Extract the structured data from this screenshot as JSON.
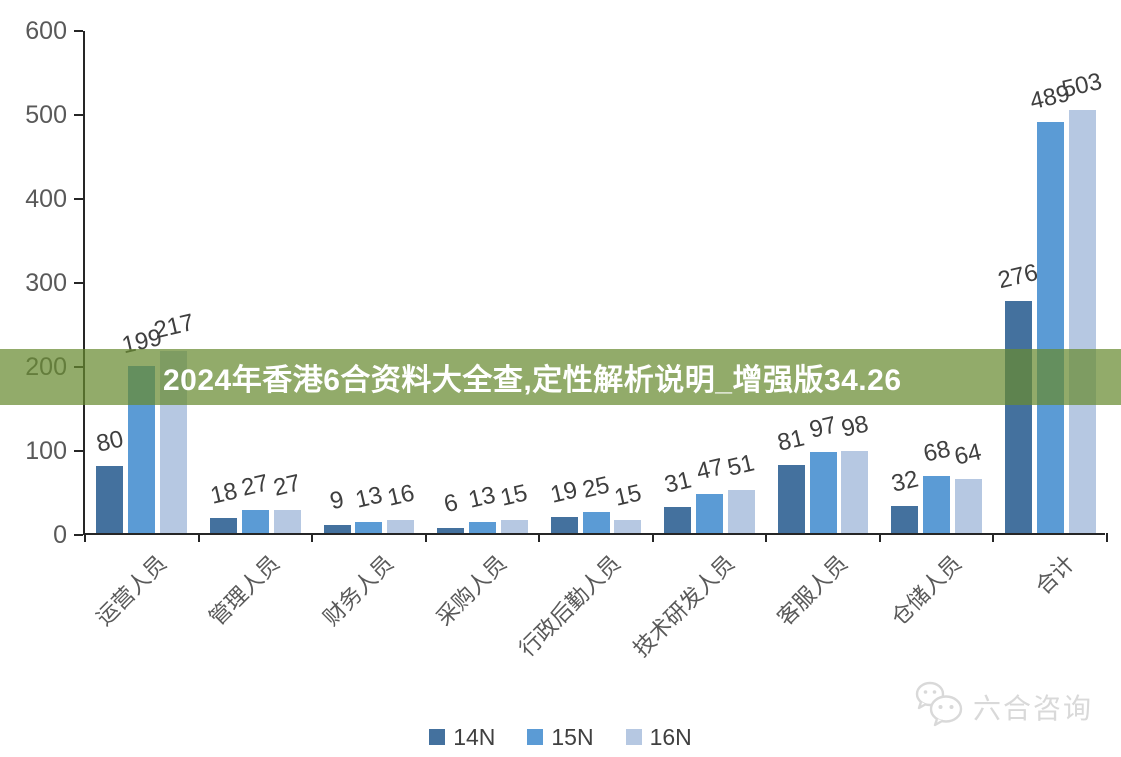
{
  "banner": {
    "text": "2024年香港6合资料大全查,定性解析说明_增强版34.26",
    "background_color": "#688B31"
  },
  "watermark": {
    "label": "六合咨询",
    "icon": "wechat-chat-bubbles-icon",
    "color": "#d9d9d9"
  },
  "chart_data": {
    "type": "bar",
    "title": "",
    "xlabel": "",
    "ylabel": "",
    "categories": [
      "运营人员",
      "管理人员",
      "财务人员",
      "采购人员",
      "行政后勤人员",
      "技术研发人员",
      "客服人员",
      "仓储人员",
      "合计"
    ],
    "series": [
      {
        "name": "14N",
        "color": "#44719e",
        "values": [
          80,
          18,
          9,
          6,
          19,
          31,
          81,
          32,
          276
        ]
      },
      {
        "name": "15N",
        "color": "#5b9bd5",
        "values": [
          199,
          27,
          13,
          13,
          25,
          47,
          97,
          68,
          489
        ]
      },
      {
        "name": "16N",
        "color": "#b6c8e2",
        "values": [
          217,
          27,
          16,
          15,
          15,
          51,
          98,
          64,
          503
        ]
      }
    ],
    "ylim": [
      0,
      600
    ],
    "yticks": [
      0,
      100,
      200,
      300,
      400,
      500,
      600
    ],
    "grid": false,
    "legend_position": "bottom",
    "axis_color": "#262626",
    "tick_label_color": "#595959",
    "data_label_color": "#3f3f3f",
    "data_labels_rotation_deg": -13,
    "category_labels_rotation_deg": -45
  }
}
